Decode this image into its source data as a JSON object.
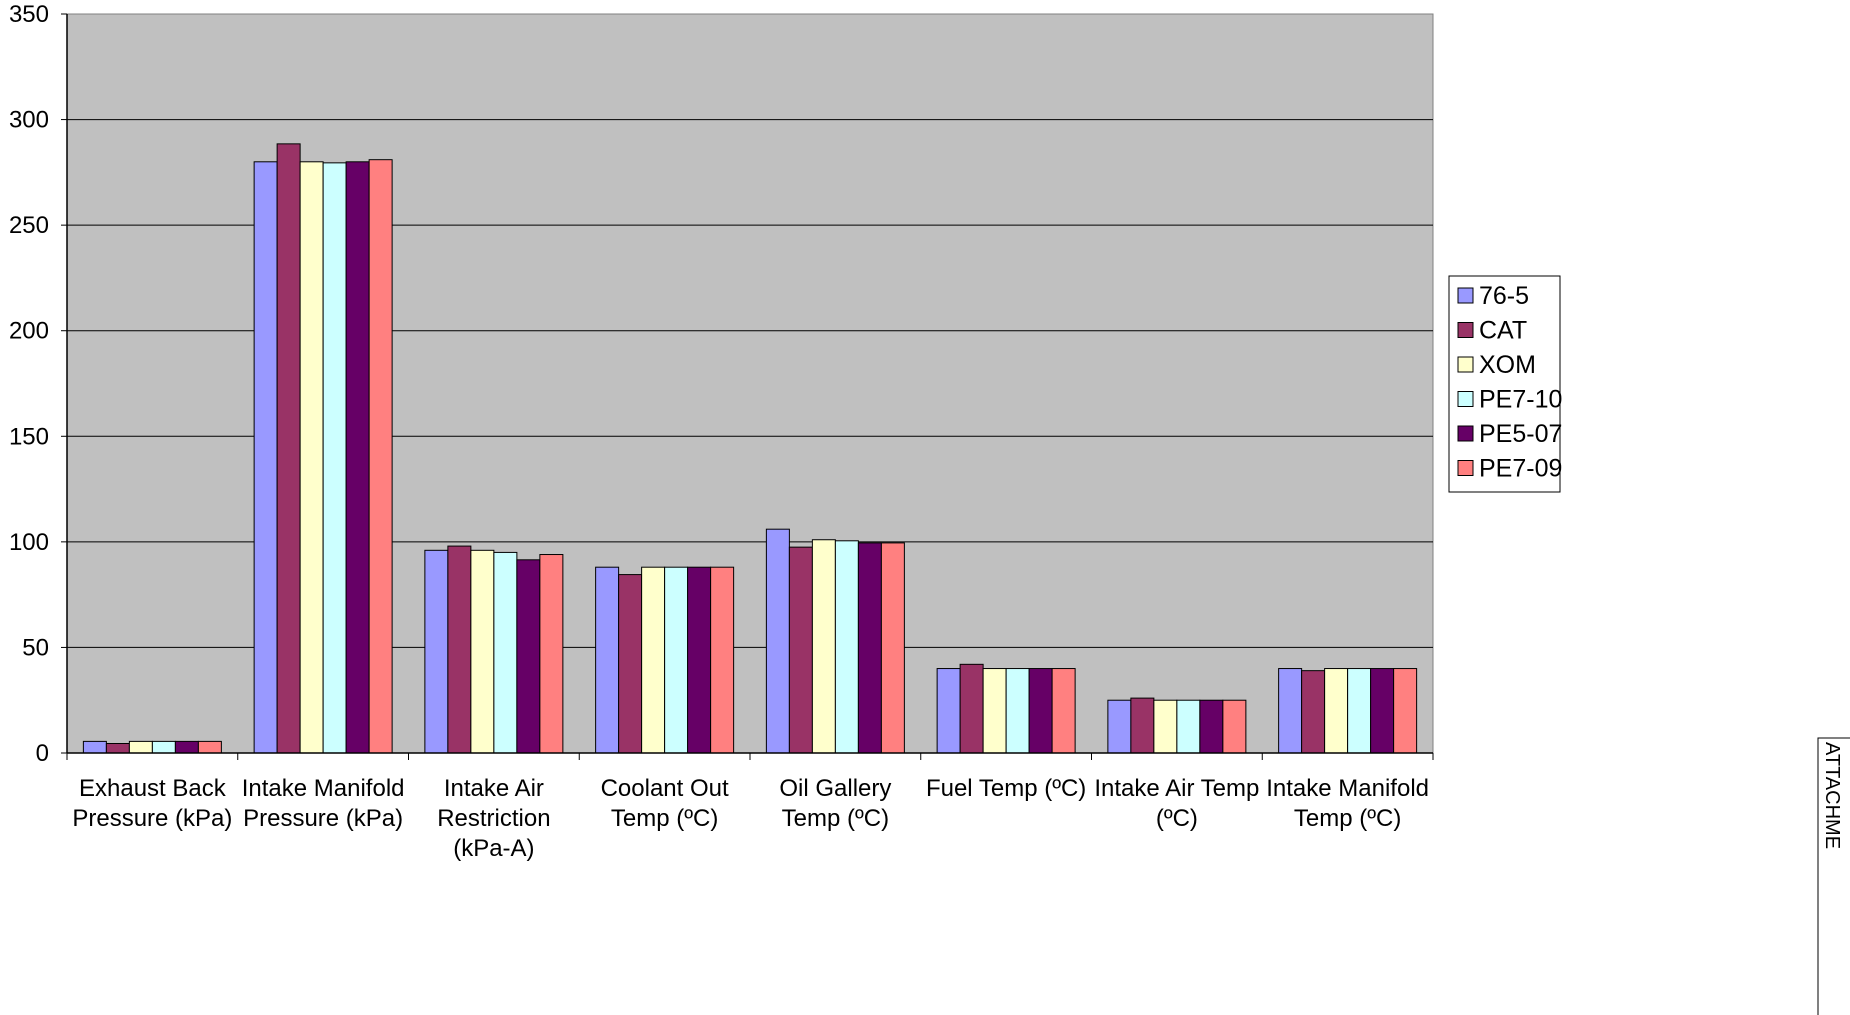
{
  "chart_data": {
    "type": "bar",
    "title": "",
    "xlabel": "",
    "ylabel": "",
    "ylim": [
      0,
      350
    ],
    "yticks": [
      0,
      50,
      100,
      150,
      200,
      250,
      300,
      350
    ],
    "grid": true,
    "legend_position": "right",
    "plot_background": "#c0c0c0",
    "categories": [
      [
        "Exhaust Back",
        "Pressure (kPa)"
      ],
      [
        "Intake Manifold",
        "Pressure (kPa)"
      ],
      [
        "Intake Air",
        "Restriction",
        "(kPa-A)"
      ],
      [
        "Coolant Out",
        "Temp (ºC)"
      ],
      [
        "Oil Gallery",
        "Temp (ºC)"
      ],
      [
        "Fuel Temp (ºC)"
      ],
      [
        "Intake Air Temp",
        "(ºC)"
      ],
      [
        "Intake Manifold",
        "Temp (ºC)"
      ]
    ],
    "series": [
      {
        "name": "76-5",
        "color": "#9999ff",
        "values": [
          5.5,
          280,
          96,
          88,
          106,
          40,
          25,
          40
        ]
      },
      {
        "name": "CAT",
        "color": "#993366",
        "values": [
          4.5,
          288.5,
          98,
          84.5,
          97.5,
          42,
          26,
          39
        ]
      },
      {
        "name": "XOM",
        "color": "#ffffcc",
        "values": [
          5.5,
          280,
          96,
          88,
          101,
          40,
          25,
          40
        ]
      },
      {
        "name": "PE7-10",
        "color": "#ccffff",
        "values": [
          5.5,
          279.5,
          95,
          88,
          100.5,
          40,
          25,
          40
        ]
      },
      {
        "name": "PE5-07",
        "color": "#660066",
        "values": [
          5.5,
          280,
          91.5,
          88,
          99.5,
          40,
          25,
          40
        ]
      },
      {
        "name": "PE7-09",
        "color": "#ff8080",
        "values": [
          5.5,
          281,
          94,
          88,
          99.5,
          40,
          25,
          40
        ]
      }
    ]
  },
  "side_label": "ATTACHME"
}
